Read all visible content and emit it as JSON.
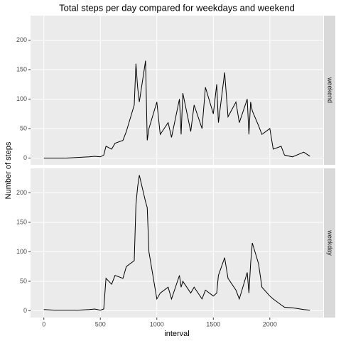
{
  "chart_data": {
    "type": "line",
    "title": "Total steps per day compared for weekdays and weekend",
    "xlabel": "interval",
    "ylabel": "Number of steps",
    "x": [
      0,
      100,
      200,
      300,
      400,
      450,
      500,
      530,
      550,
      600,
      630,
      700,
      730,
      800,
      815,
      830,
      845,
      900,
      915,
      930,
      1000,
      1030,
      1100,
      1130,
      1200,
      1215,
      1230,
      1300,
      1330,
      1400,
      1430,
      1500,
      1530,
      1545,
      1600,
      1630,
      1700,
      1730,
      1800,
      1815,
      1830,
      1845,
      1900,
      1930,
      2000,
      2030,
      2100,
      2130,
      2200,
      2300,
      2355
    ],
    "series": [
      {
        "name": "weekend",
        "color": "#000000",
        "values": [
          0,
          0,
          0,
          1,
          2,
          3,
          2,
          5,
          20,
          15,
          25,
          30,
          45,
          90,
          160,
          120,
          95,
          165,
          30,
          50,
          95,
          40,
          60,
          35,
          100,
          40,
          110,
          45,
          90,
          50,
          120,
          75,
          125,
          60,
          145,
          70,
          95,
          60,
          100,
          40,
          95,
          80,
          55,
          40,
          50,
          15,
          20,
          5,
          2,
          10,
          3
        ]
      },
      {
        "name": "weekday",
        "color": "#000000",
        "values": [
          2,
          1,
          1,
          1,
          2,
          3,
          1,
          3,
          55,
          45,
          60,
          55,
          75,
          85,
          180,
          210,
          230,
          185,
          175,
          100,
          20,
          30,
          40,
          20,
          60,
          40,
          50,
          30,
          40,
          20,
          35,
          25,
          30,
          60,
          90,
          55,
          35,
          20,
          65,
          30,
          80,
          115,
          80,
          40,
          25,
          20,
          10,
          6,
          5,
          2,
          1
        ]
      }
    ],
    "xlim": [
      -117.75,
      2472.75
    ],
    "ylim": [
      -11.5,
      241.5
    ],
    "xticks": [
      0,
      500,
      1000,
      1500,
      2000
    ],
    "yticks": [
      0,
      50,
      100,
      150,
      200
    ],
    "grid": true
  }
}
